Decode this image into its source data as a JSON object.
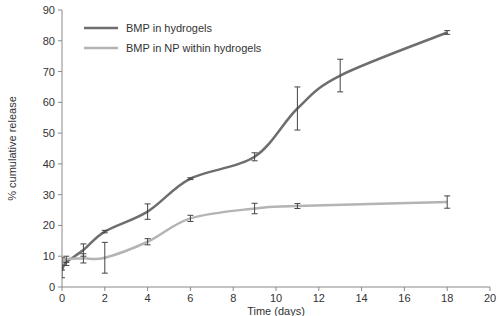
{
  "chart_data": {
    "type": "line",
    "x_label": "Time (days)",
    "y_label": "% cumulative release",
    "xlim": [
      0,
      20
    ],
    "xticks": [
      0,
      2,
      4,
      6,
      8,
      10,
      12,
      14,
      16,
      18,
      20
    ],
    "ylim": [
      0,
      90
    ],
    "yticks": [
      0,
      10,
      20,
      30,
      40,
      50,
      60,
      70,
      80,
      90
    ],
    "grid": false,
    "legend": "top-left",
    "series": [
      {
        "name": "BMP in hydrogels",
        "color": "#6e6e6e",
        "line_style": "solid",
        "x": [
          0,
          0.2,
          1,
          2,
          4,
          6,
          9,
          11,
          13,
          18
        ],
        "values": [
          5.5,
          8,
          12,
          18,
          24.5,
          35.2,
          42.3,
          58,
          68.7,
          82.7
        ],
        "errors": [
          2.5,
          1,
          2,
          0.4,
          2.5,
          0.3,
          1.3,
          7,
          5.3,
          0.6
        ]
      },
      {
        "name": "BMP in NP within hydrogels",
        "color": "#b4b4b4",
        "line_style": "solid",
        "x": [
          0,
          0.2,
          1,
          2,
          4,
          6,
          9,
          11,
          18
        ],
        "values": [
          7.5,
          9,
          9.3,
          9.5,
          14.7,
          22.3,
          25.5,
          26.3,
          27.6
        ],
        "errors": [
          2,
          1,
          1.5,
          5,
          1,
          1,
          1.7,
          0.8,
          2
        ]
      }
    ]
  }
}
